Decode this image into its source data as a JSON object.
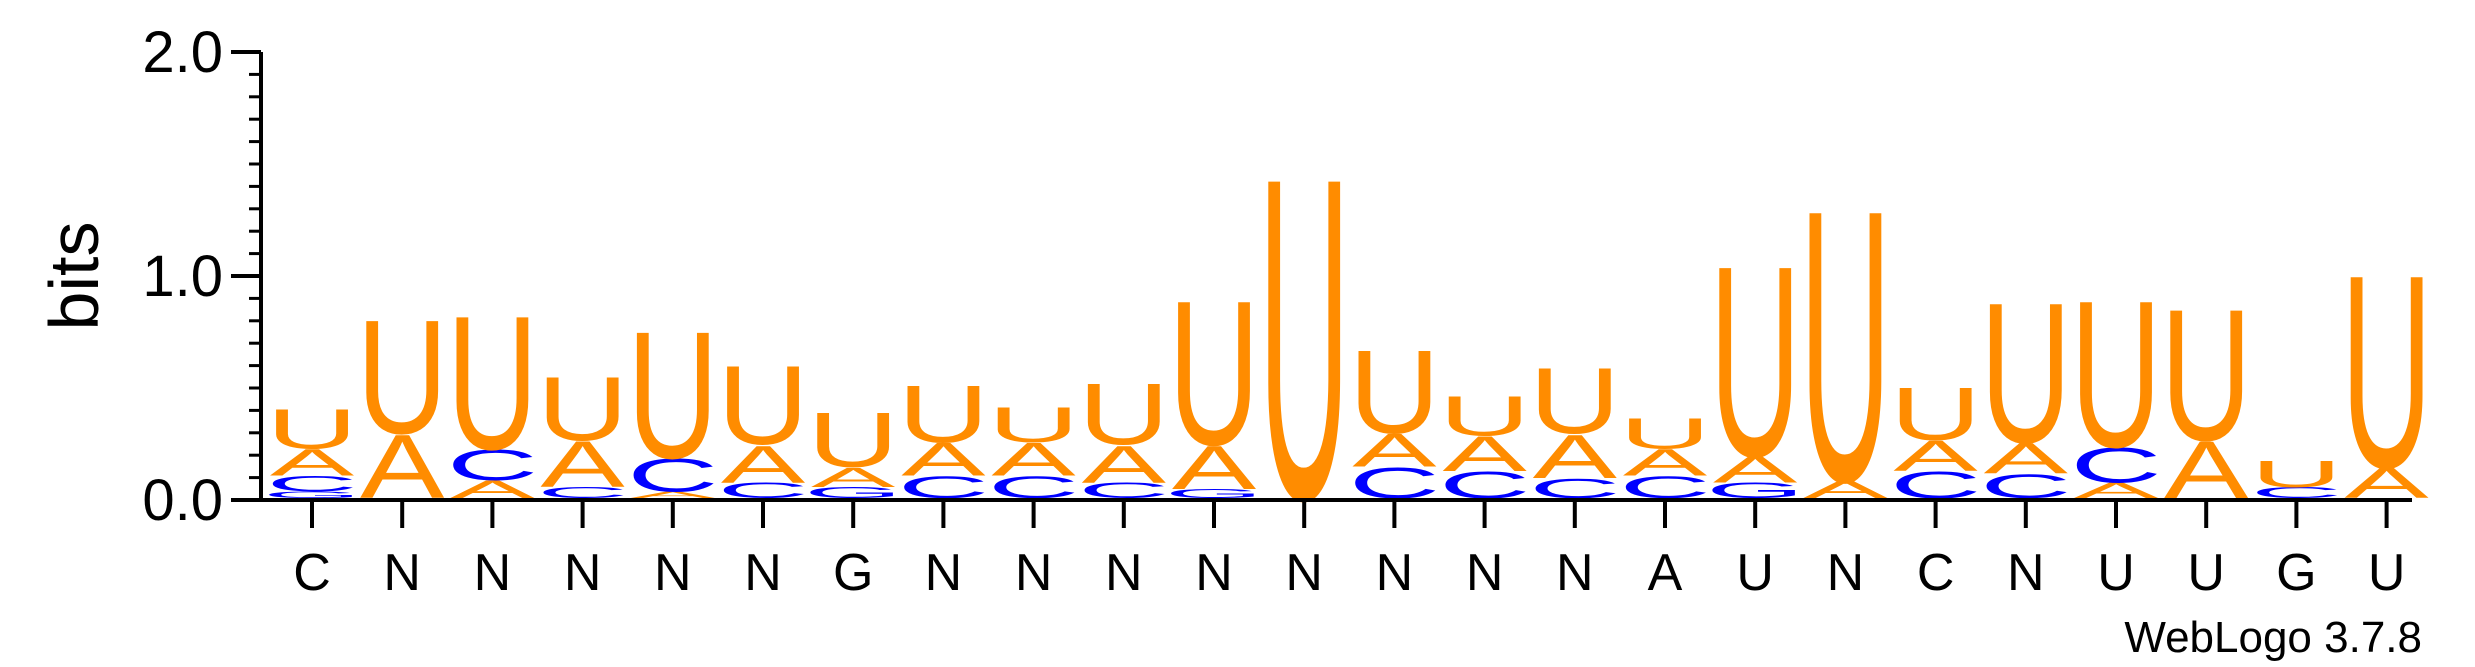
{
  "chart_data": {
    "type": "sequence-logo",
    "ylabel": "bits",
    "ylim": [
      0,
      2.0
    ],
    "yticks": [
      {
        "value": 0.0,
        "label": "0.0"
      },
      {
        "value": 1.0,
        "label": "1.0"
      },
      {
        "value": 2.0,
        "label": "2.0"
      }
    ],
    "watermark": "WebLogo 3.7.8",
    "colors": {
      "A": "#ff8c00",
      "U": "#ff8c00",
      "C": "#0000ff",
      "G": "#0000ff",
      "axis": "#000000"
    },
    "positions": [
      {
        "label": "C",
        "stack": [
          {
            "letter": "G",
            "bits": 0.03
          },
          {
            "letter": "C",
            "bits": 0.07
          },
          {
            "letter": "A",
            "bits": 0.12
          },
          {
            "letter": "U",
            "bits": 0.18
          }
        ]
      },
      {
        "label": "N",
        "stack": [
          {
            "letter": "A",
            "bits": 0.29
          },
          {
            "letter": "U",
            "bits": 0.52
          }
        ]
      },
      {
        "label": "N",
        "stack": [
          {
            "letter": "A",
            "bits": 0.08
          },
          {
            "letter": "C",
            "bits": 0.14
          },
          {
            "letter": "U",
            "bits": 0.61
          }
        ]
      },
      {
        "label": "N",
        "stack": [
          {
            "letter": "C",
            "bits": 0.05
          },
          {
            "letter": "A",
            "bits": 0.21
          },
          {
            "letter": "U",
            "bits": 0.29
          }
        ]
      },
      {
        "label": "N",
        "stack": [
          {
            "letter": "A",
            "bits": 0.03
          },
          {
            "letter": "C",
            "bits": 0.15
          },
          {
            "letter": "U",
            "bits": 0.58
          }
        ]
      },
      {
        "label": "N",
        "stack": [
          {
            "letter": "C",
            "bits": 0.07
          },
          {
            "letter": "A",
            "bits": 0.17
          },
          {
            "letter": "U",
            "bits": 0.36
          }
        ]
      },
      {
        "label": "G",
        "stack": [
          {
            "letter": "G",
            "bits": 0.05
          },
          {
            "letter": "A",
            "bits": 0.09
          },
          {
            "letter": "U",
            "bits": 0.25
          }
        ]
      },
      {
        "label": "N",
        "stack": [
          {
            "letter": "C",
            "bits": 0.1
          },
          {
            "letter": "A",
            "bits": 0.15
          },
          {
            "letter": "U",
            "bits": 0.26
          }
        ]
      },
      {
        "label": "N",
        "stack": [
          {
            "letter": "C",
            "bits": 0.1
          },
          {
            "letter": "A",
            "bits": 0.15
          },
          {
            "letter": "U",
            "bits": 0.16
          }
        ]
      },
      {
        "label": "N",
        "stack": [
          {
            "letter": "C",
            "bits": 0.07
          },
          {
            "letter": "A",
            "bits": 0.17
          },
          {
            "letter": "U",
            "bits": 0.28
          }
        ]
      },
      {
        "label": "N",
        "stack": [
          {
            "letter": "G",
            "bits": 0.04
          },
          {
            "letter": "A",
            "bits": 0.2
          },
          {
            "letter": "U",
            "bits": 0.66
          }
        ]
      },
      {
        "label": "N",
        "stack": [
          {
            "letter": "U",
            "bits": 1.47
          }
        ]
      },
      {
        "label": "N",
        "stack": [
          {
            "letter": "C",
            "bits": 0.14
          },
          {
            "letter": "A",
            "bits": 0.15
          },
          {
            "letter": "U",
            "bits": 0.38
          }
        ]
      },
      {
        "label": "N",
        "stack": [
          {
            "letter": "C",
            "bits": 0.12
          },
          {
            "letter": "A",
            "bits": 0.16
          },
          {
            "letter": "U",
            "bits": 0.18
          }
        ]
      },
      {
        "label": "N",
        "stack": [
          {
            "letter": "C",
            "bits": 0.09
          },
          {
            "letter": "A",
            "bits": 0.2
          },
          {
            "letter": "U",
            "bits": 0.3
          }
        ]
      },
      {
        "label": "A",
        "stack": [
          {
            "letter": "C",
            "bits": 0.1
          },
          {
            "letter": "A",
            "bits": 0.12
          },
          {
            "letter": "U",
            "bits": 0.14
          }
        ]
      },
      {
        "label": "U",
        "stack": [
          {
            "letter": "G",
            "bits": 0.07
          },
          {
            "letter": "A",
            "bits": 0.12
          },
          {
            "letter": "U",
            "bits": 0.87
          }
        ]
      },
      {
        "label": "N",
        "stack": [
          {
            "letter": "A",
            "bits": 0.08
          },
          {
            "letter": "U",
            "bits": 1.24
          }
        ]
      },
      {
        "label": "C",
        "stack": [
          {
            "letter": "C",
            "bits": 0.12
          },
          {
            "letter": "A",
            "bits": 0.14
          },
          {
            "letter": "U",
            "bits": 0.24
          }
        ]
      },
      {
        "label": "N",
        "stack": [
          {
            "letter": "C",
            "bits": 0.11
          },
          {
            "letter": "A",
            "bits": 0.14
          },
          {
            "letter": "U",
            "bits": 0.64
          }
        ]
      },
      {
        "label": "U",
        "stack": [
          {
            "letter": "A",
            "bits": 0.07
          },
          {
            "letter": "C",
            "bits": 0.16
          },
          {
            "letter": "U",
            "bits": 0.67
          }
        ]
      },
      {
        "label": "U",
        "stack": [
          {
            "letter": "A",
            "bits": 0.26
          },
          {
            "letter": "U",
            "bits": 0.6
          }
        ]
      },
      {
        "label": "G",
        "stack": [
          {
            "letter": "C",
            "bits": 0.05
          },
          {
            "letter": "U",
            "bits": 0.12
          }
        ]
      },
      {
        "label": "U",
        "stack": [
          {
            "letter": "A",
            "bits": 0.14
          },
          {
            "letter": "U",
            "bits": 0.88
          }
        ]
      }
    ]
  }
}
